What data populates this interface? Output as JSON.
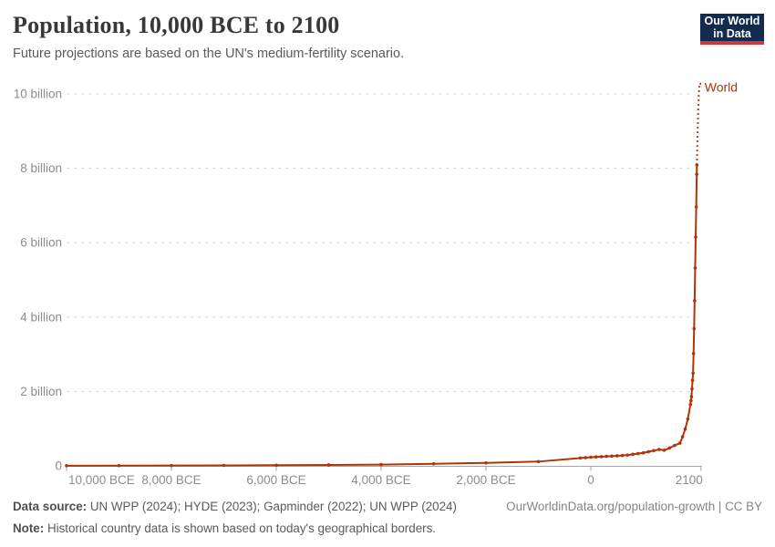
{
  "header": {
    "title": "Population, 10,000 BCE to 2100",
    "subtitle": "Future projections are based on the UN's medium-fertility scenario.",
    "logo": {
      "line1": "Our World",
      "line2": "in Data"
    }
  },
  "chart_data": {
    "type": "line",
    "title": "Population, 10,000 BCE to 2100",
    "xlabel": "",
    "ylabel": "",
    "unit": "billions of people",
    "xlim": [
      -10000,
      2100
    ],
    "ylim_billions": [
      0,
      10.3
    ],
    "grid": "horizontal-dashed",
    "legend_position": "end-of-line-label",
    "yticks": [
      {
        "value": 0,
        "label": "0"
      },
      {
        "value": 2,
        "label": "2 billion"
      },
      {
        "value": 4,
        "label": "4 billion"
      },
      {
        "value": 6,
        "label": "6 billion"
      },
      {
        "value": 8,
        "label": "8 billion"
      },
      {
        "value": 10,
        "label": "10 billion"
      }
    ],
    "xticks": [
      {
        "value": -10000,
        "label": "10,000 BCE"
      },
      {
        "value": -8000,
        "label": "8,000 BCE"
      },
      {
        "value": -6000,
        "label": "6,000 BCE"
      },
      {
        "value": -4000,
        "label": "4,000 BCE"
      },
      {
        "value": -2000,
        "label": "2,000 BCE"
      },
      {
        "value": 0,
        "label": "0"
      },
      {
        "value": 2100,
        "label": "2100"
      }
    ],
    "series": [
      {
        "name": "World",
        "color": "#b13507",
        "historical": {
          "years": [
            -10000,
            -9000,
            -8000,
            -7000,
            -6000,
            -5000,
            -4000,
            -3000,
            -2000,
            -1000,
            -200,
            -100,
            0,
            100,
            200,
            300,
            400,
            500,
            600,
            700,
            800,
            900,
            1000,
            1100,
            1200,
            1300,
            1400,
            1500,
            1600,
            1700,
            1750,
            1800,
            1850,
            1900,
            1910,
            1920,
            1930,
            1940,
            1950,
            1960,
            1970,
            1980,
            1990,
            2000,
            2010,
            2020,
            2023
          ],
          "population_billions": [
            0.004,
            0.006,
            0.008,
            0.012,
            0.017,
            0.025,
            0.035,
            0.055,
            0.08,
            0.115,
            0.21,
            0.22,
            0.232,
            0.24,
            0.248,
            0.255,
            0.262,
            0.27,
            0.28,
            0.29,
            0.31,
            0.33,
            0.35,
            0.38,
            0.41,
            0.44,
            0.42,
            0.48,
            0.55,
            0.61,
            0.78,
            0.99,
            1.26,
            1.65,
            1.75,
            1.86,
            2.07,
            2.3,
            2.49,
            3.02,
            3.69,
            4.44,
            5.32,
            6.15,
            6.96,
            7.84,
            8.09
          ]
        },
        "projection": {
          "style": "dotted",
          "years": [
            2023,
            2030,
            2040,
            2050,
            2060,
            2070,
            2080,
            2090,
            2100
          ],
          "population_billions": [
            8.09,
            8.55,
            9.15,
            9.66,
            10.0,
            10.18,
            10.29,
            10.28,
            10.18
          ]
        }
      }
    ]
  },
  "footer": {
    "data_source_label": "Data source:",
    "data_source_text": " UN WPP (2024); HYDE (2023); Gapminder (2022); UN WPP (2024)",
    "note_label": "Note:",
    "note_text": " Historical country data is shown based on today's geographical borders.",
    "credit": "OurWorldinData.org/population-growth | CC BY"
  }
}
